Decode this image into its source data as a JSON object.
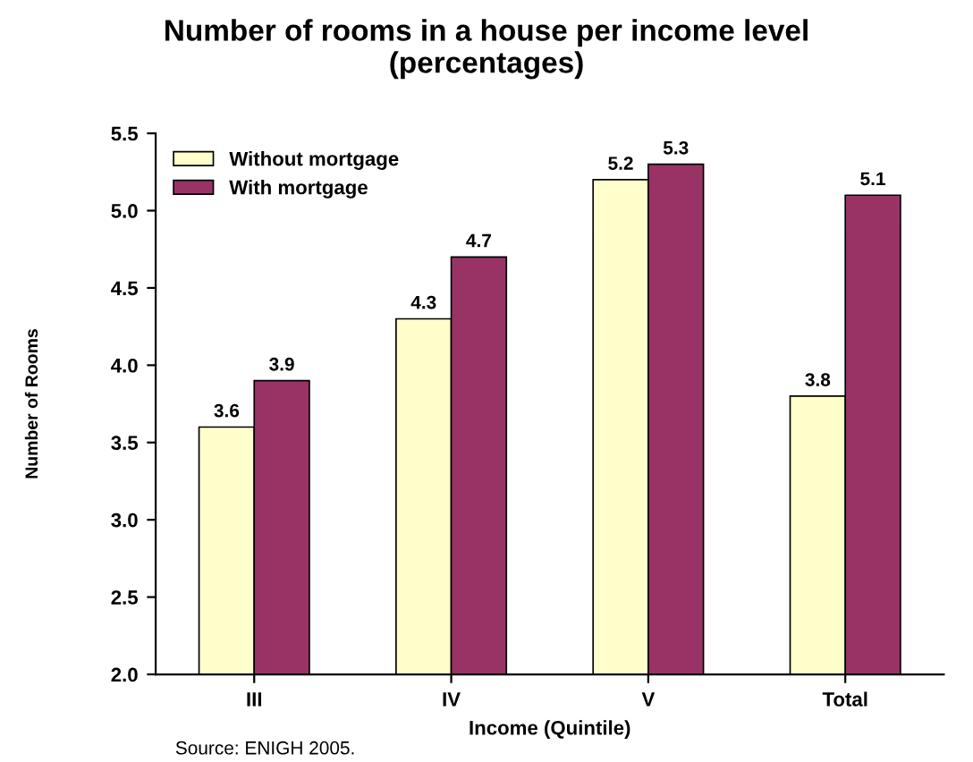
{
  "chart_data": {
    "type": "bar",
    "title": "Number of rooms in a house per income level\n(percentages)",
    "xlabel": "Income (Quintile)",
    "ylabel": "Number of Rooms",
    "categories": [
      "III",
      "IV",
      "V",
      "Total"
    ],
    "series": [
      {
        "name": "Without mortgage",
        "color": "#ffffcc",
        "values": [
          3.6,
          4.3,
          5.2,
          3.8
        ]
      },
      {
        "name": "With mortgage",
        "color": "#993366",
        "values": [
          3.9,
          4.7,
          5.3,
          5.1
        ]
      }
    ],
    "ylim": [
      2.0,
      5.5
    ],
    "yticks": [
      {
        "value": 2.0,
        "label": "2.0"
      },
      {
        "value": 2.5,
        "label": "2.5"
      },
      {
        "value": 3.0,
        "label": "3.0"
      },
      {
        "value": 3.5,
        "label": "3.5"
      },
      {
        "value": 4.0,
        "label": "4.0"
      },
      {
        "value": 4.5,
        "label": "4.5"
      },
      {
        "value": 5.0,
        "label": "5.0"
      },
      {
        "value": 5.5,
        "label": "5.5"
      }
    ],
    "data_labels": true,
    "grid": false,
    "legend": "top left",
    "annotations": [
      "Source: ENIGH 2005."
    ]
  }
}
